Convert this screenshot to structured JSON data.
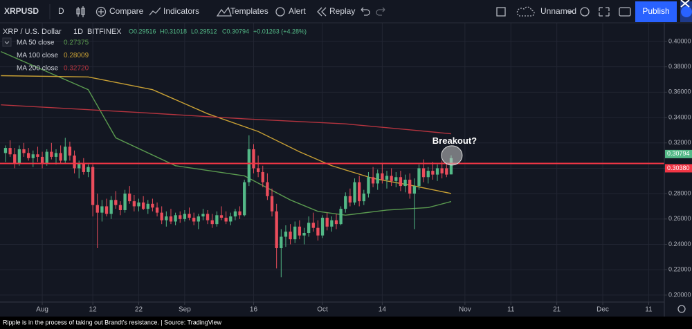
{
  "toolbar": {
    "symbol": "XRPUSD",
    "interval": "D",
    "compare": "Compare",
    "indicators": "Indicators",
    "templates": "Templates",
    "alert": "Alert",
    "replay": "Replay",
    "layout": "Unnamed",
    "publish": "Publish"
  },
  "legend": {
    "symbol": "XRP / U.S. Dollar",
    "interval": "1D",
    "exchange": "BITFINEX",
    "open": "O0.29516",
    "high": "H0.31018",
    "low": "L0.29512",
    "close": "C0.30794",
    "change": "+0.01263 (+4.28%)"
  },
  "chart_data": {
    "type": "candlestick",
    "x": [
      -7,
      -6,
      -5,
      -4,
      -3,
      -2,
      -1,
      0,
      1,
      2,
      3,
      4,
      5,
      6,
      7,
      8,
      9,
      10,
      11,
      12,
      13,
      14,
      15,
      16,
      17,
      18,
      19,
      20,
      21,
      22,
      23,
      24,
      25,
      26,
      27,
      28,
      29,
      30,
      31,
      32,
      33,
      34,
      35,
      36,
      37,
      38,
      39,
      40,
      41,
      42,
      43,
      44,
      45,
      46,
      47,
      48,
      49,
      50,
      51,
      52,
      53,
      54,
      55,
      56,
      57,
      58,
      59,
      60,
      61,
      62,
      63,
      64,
      65,
      66,
      67,
      68,
      69,
      70,
      71,
      72,
      73,
      74,
      75,
      76,
      77,
      78,
      79,
      80,
      81,
      82,
      83,
      84,
      85,
      86,
      87,
      88,
      89,
      90
    ],
    "open": [
      0.312,
      0.316,
      0.311,
      0.304,
      0.315,
      0.312,
      0.308,
      0.311,
      0.309,
      0.304,
      0.313,
      0.309,
      0.312,
      0.306,
      0.317,
      0.31,
      0.3,
      0.304,
      0.297,
      0.301,
      0.271,
      0.265,
      0.27,
      0.264,
      0.275,
      0.271,
      0.267,
      0.28,
      0.274,
      0.27,
      0.273,
      0.268,
      0.272,
      0.269,
      0.265,
      0.259,
      0.262,
      0.258,
      0.263,
      0.26,
      0.264,
      0.261,
      0.258,
      0.262,
      0.264,
      0.259,
      0.256,
      0.263,
      0.261,
      0.258,
      0.262,
      0.266,
      0.263,
      0.289,
      0.315,
      0.3,
      0.297,
      0.289,
      0.278,
      0.266,
      0.237,
      0.246,
      0.25,
      0.244,
      0.254,
      0.247,
      0.249,
      0.257,
      0.253,
      0.247,
      0.261,
      0.254,
      0.259,
      0.256,
      0.268,
      0.278,
      0.273,
      0.289,
      0.274,
      0.28,
      0.293,
      0.288,
      0.296,
      0.291,
      0.294,
      0.29,
      0.293,
      0.286,
      0.291,
      0.28,
      0.286,
      0.3,
      0.293,
      0.298,
      0.295,
      0.3,
      0.3,
      0.29516
    ],
    "high": [
      0.318,
      0.322,
      0.316,
      0.318,
      0.32,
      0.316,
      0.314,
      0.317,
      0.313,
      0.315,
      0.32,
      0.315,
      0.318,
      0.324,
      0.321,
      0.314,
      0.306,
      0.308,
      0.303,
      0.303,
      0.28,
      0.275,
      0.276,
      0.278,
      0.282,
      0.274,
      0.283,
      0.286,
      0.279,
      0.276,
      0.278,
      0.275,
      0.276,
      0.273,
      0.27,
      0.266,
      0.268,
      0.265,
      0.266,
      0.267,
      0.269,
      0.265,
      0.264,
      0.268,
      0.267,
      0.264,
      0.266,
      0.27,
      0.266,
      0.265,
      0.268,
      0.27,
      0.291,
      0.326,
      0.319,
      0.31,
      0.302,
      0.296,
      0.284,
      0.272,
      0.252,
      0.255,
      0.256,
      0.258,
      0.259,
      0.253,
      0.262,
      0.265,
      0.259,
      0.263,
      0.265,
      0.262,
      0.264,
      0.27,
      0.281,
      0.284,
      0.292,
      0.294,
      0.283,
      0.297,
      0.301,
      0.299,
      0.304,
      0.298,
      0.3,
      0.297,
      0.298,
      0.295,
      0.296,
      0.292,
      0.303,
      0.307,
      0.301,
      0.305,
      0.303,
      0.306,
      0.304,
      0.31018
    ],
    "low": [
      0.305,
      0.309,
      0.3,
      0.302,
      0.309,
      0.306,
      0.301,
      0.305,
      0.3,
      0.302,
      0.307,
      0.303,
      0.304,
      0.304,
      0.306,
      0.296,
      0.292,
      0.295,
      0.293,
      0.262,
      0.237,
      0.258,
      0.262,
      0.26,
      0.268,
      0.263,
      0.265,
      0.272,
      0.266,
      0.266,
      0.267,
      0.264,
      0.266,
      0.262,
      0.256,
      0.254,
      0.256,
      0.255,
      0.257,
      0.258,
      0.259,
      0.255,
      0.252,
      0.259,
      0.256,
      0.253,
      0.254,
      0.259,
      0.256,
      0.255,
      0.259,
      0.26,
      0.262,
      0.286,
      0.296,
      0.293,
      0.285,
      0.275,
      0.262,
      0.221,
      0.214,
      0.238,
      0.24,
      0.241,
      0.244,
      0.24,
      0.246,
      0.25,
      0.243,
      0.245,
      0.251,
      0.25,
      0.252,
      0.255,
      0.265,
      0.27,
      0.271,
      0.27,
      0.271,
      0.277,
      0.285,
      0.283,
      0.288,
      0.284,
      0.286,
      0.285,
      0.282,
      0.281,
      0.276,
      0.252,
      0.283,
      0.289,
      0.288,
      0.291,
      0.29,
      0.292,
      0.293,
      0.29512
    ],
    "close": [
      0.316,
      0.311,
      0.304,
      0.315,
      0.312,
      0.308,
      0.311,
      0.309,
      0.304,
      0.313,
      0.309,
      0.312,
      0.306,
      0.317,
      0.31,
      0.3,
      0.304,
      0.297,
      0.301,
      0.271,
      0.265,
      0.27,
      0.264,
      0.275,
      0.271,
      0.267,
      0.28,
      0.274,
      0.27,
      0.273,
      0.268,
      0.272,
      0.269,
      0.265,
      0.259,
      0.262,
      0.258,
      0.263,
      0.26,
      0.264,
      0.261,
      0.258,
      0.262,
      0.264,
      0.259,
      0.256,
      0.263,
      0.261,
      0.258,
      0.262,
      0.266,
      0.263,
      0.289,
      0.315,
      0.3,
      0.297,
      0.289,
      0.278,
      0.266,
      0.237,
      0.246,
      0.25,
      0.244,
      0.254,
      0.247,
      0.249,
      0.257,
      0.253,
      0.247,
      0.261,
      0.254,
      0.259,
      0.256,
      0.268,
      0.278,
      0.273,
      0.289,
      0.274,
      0.28,
      0.293,
      0.288,
      0.296,
      0.291,
      0.294,
      0.29,
      0.293,
      0.286,
      0.291,
      0.28,
      0.286,
      0.3,
      0.293,
      0.298,
      0.295,
      0.3,
      0.296,
      0.295,
      0.30794
    ],
    "up_color": "#53b987",
    "down_color": "#eb4d5c",
    "xlim": [
      -8.2,
      136.4
    ],
    "xticks": [
      {
        "value": 1,
        "label": "Aug"
      },
      12,
      22,
      {
        "value": 32,
        "label": "Sep"
      },
      {
        "value": 47,
        "label": "16"
      },
      {
        "value": 62,
        "label": "Oct"
      },
      {
        "value": 75,
        "label": "14"
      },
      {
        "value": 93,
        "label": "Nov"
      },
      {
        "value": 103,
        "label": "11"
      },
      {
        "value": 113,
        "label": "21"
      },
      {
        "value": 123,
        "label": "Dec"
      },
      {
        "value": 133,
        "label": "11"
      }
    ],
    "ylim": [
      0.1945,
      0.4147
    ],
    "yticks": [
      {
        "value": 0.2,
        "label": "0.20000"
      },
      {
        "value": 0.22,
        "label": "0.22000"
      },
      {
        "value": 0.24,
        "label": "0.24000"
      },
      {
        "value": 0.26,
        "label": "0.26000"
      },
      {
        "value": 0.28,
        "label": "0.28000"
      },
      {
        "value": 0.3,
        "label": "0.30000"
      },
      {
        "value": 0.32,
        "label": "0.32000"
      },
      {
        "value": 0.34,
        "label": "0.34000"
      },
      {
        "value": 0.36,
        "label": "0.36000"
      },
      {
        "value": 0.38,
        "label": "0.38000"
      },
      {
        "value": 0.4,
        "label": "0.40000"
      }
    ],
    "grid": true,
    "ma_series": [
      {
        "name": "MA 50 close",
        "color": "#5a9a4f",
        "x": [
          -8,
          11,
          17,
          30,
          45,
          55,
          61,
          67,
          76,
          85,
          90
        ],
        "values": [
          0.392,
          0.362,
          0.324,
          0.302,
          0.294,
          0.275,
          0.266,
          0.263,
          0.267,
          0.269,
          0.27375
        ]
      },
      {
        "name": "MA 100 close",
        "color": "#c8a034",
        "x": [
          -8,
          11,
          25,
          37,
          48,
          57,
          64,
          73,
          82,
          90
        ],
        "values": [
          0.373,
          0.372,
          0.362,
          0.343,
          0.329,
          0.313,
          0.302,
          0.292,
          0.286,
          0.28009
        ]
      },
      {
        "name": "MA 200 close",
        "color": "#b6343f",
        "x": [
          -8,
          22,
          45,
          67,
          82,
          90
        ],
        "values": [
          0.35,
          0.344,
          0.339,
          0.335,
          0.33,
          0.3272
        ],
        "value_labels": [
          null,
          null,
          null,
          null,
          null,
          "0.32720"
        ]
      }
    ],
    "resistance": {
      "value": 0.3038,
      "label": "0.30380",
      "color": "#f23645"
    },
    "annotation": "Breakout?"
  },
  "caption": "Ripple is in the process of taking out Brandt's resistance. | Source: TradingView"
}
